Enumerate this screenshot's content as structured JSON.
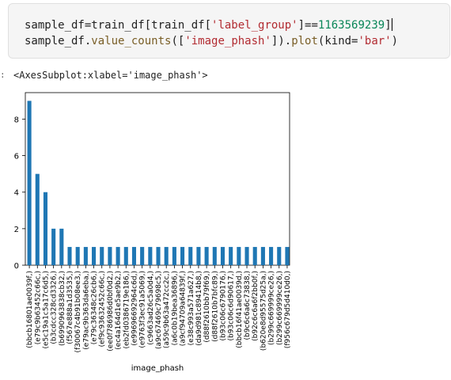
{
  "code": {
    "line1": {
      "a": "sample_df=train_df[train_df[",
      "b": "'label_group'",
      "c": "]==",
      "d": "1163569239",
      "e": "]"
    },
    "line2": {
      "a": "sample_df.",
      "b": "value_counts",
      "c": "([",
      "d": "'image_phash'",
      "e": "]).",
      "f": "plot",
      "g": "(kind=",
      "h": "'bar'",
      "i": ")"
    }
  },
  "output": {
    "prompt": ":",
    "repr": "<AxesSubplot:xlabel='image_phash'>"
  },
  "chart_data": {
    "type": "bar",
    "xlabel": "image_phash",
    "ylabel": "",
    "ylim": [
      0,
      9.45
    ],
    "yticks": [
      0,
      2,
      4,
      6,
      8
    ],
    "bar_color": "#1f77b4",
    "categories": [
      "(bbcb16801ae0039f,)",
      "(e79c9b63452c66c,)",
      "(e5c19a1c5a17c6d5,)",
      "(b3cdcc328cd3326,)",
      "(b6990963838cb32,)",
      "(f567e888a1d3535,)",
      "(f30067c4b91b08ee3,)",
      "(e79ac9b363da6eba,)",
      "(e79c36348c26cb6,)",
      "(ef9c93632452c66c,)",
      "(ee0f786986d0bf0d2,)",
      "(ec4a164d1e5ae9b2,)",
      "(eb2fd0386719e186,)",
      "(e99696692964c6d,)",
      "(e9763f3ec91a5069,)",
      "(c9663ad26c5a0d4,)",
      "(a9c67469c79698c5,)",
      "(a59c9b63a472cc2c,)",
      "(a6c0b19bea36896,)",
      "(a9cf94709a64839f,)",
      "(e38c993a571a627,)",
      "(da9d981c89414b8,)",
      "(d88f2610bb79f69,)",
      "(d88f2610b7bfc89,)",
      "(b93c06c6790176,)",
      "(b93c06c6d90617,)",
      "(bbcb16f41ae0039d,)",
      "(b9c6c6a6c73838,)",
      "(b92c6c6a6f2bb0f,)",
      "(b620e8d95575d25a,)",
      "(b299c669999ce26,)",
      "(b299c669999ce26,)",
      "(f956c679d5d410d0,)"
    ],
    "values": [
      9,
      5,
      4,
      2,
      2,
      1,
      1,
      1,
      1,
      1,
      1,
      1,
      1,
      1,
      1,
      1,
      1,
      1,
      1,
      1,
      1,
      1,
      1,
      1,
      1,
      1,
      1,
      1,
      1,
      1,
      1,
      1,
      1
    ]
  }
}
